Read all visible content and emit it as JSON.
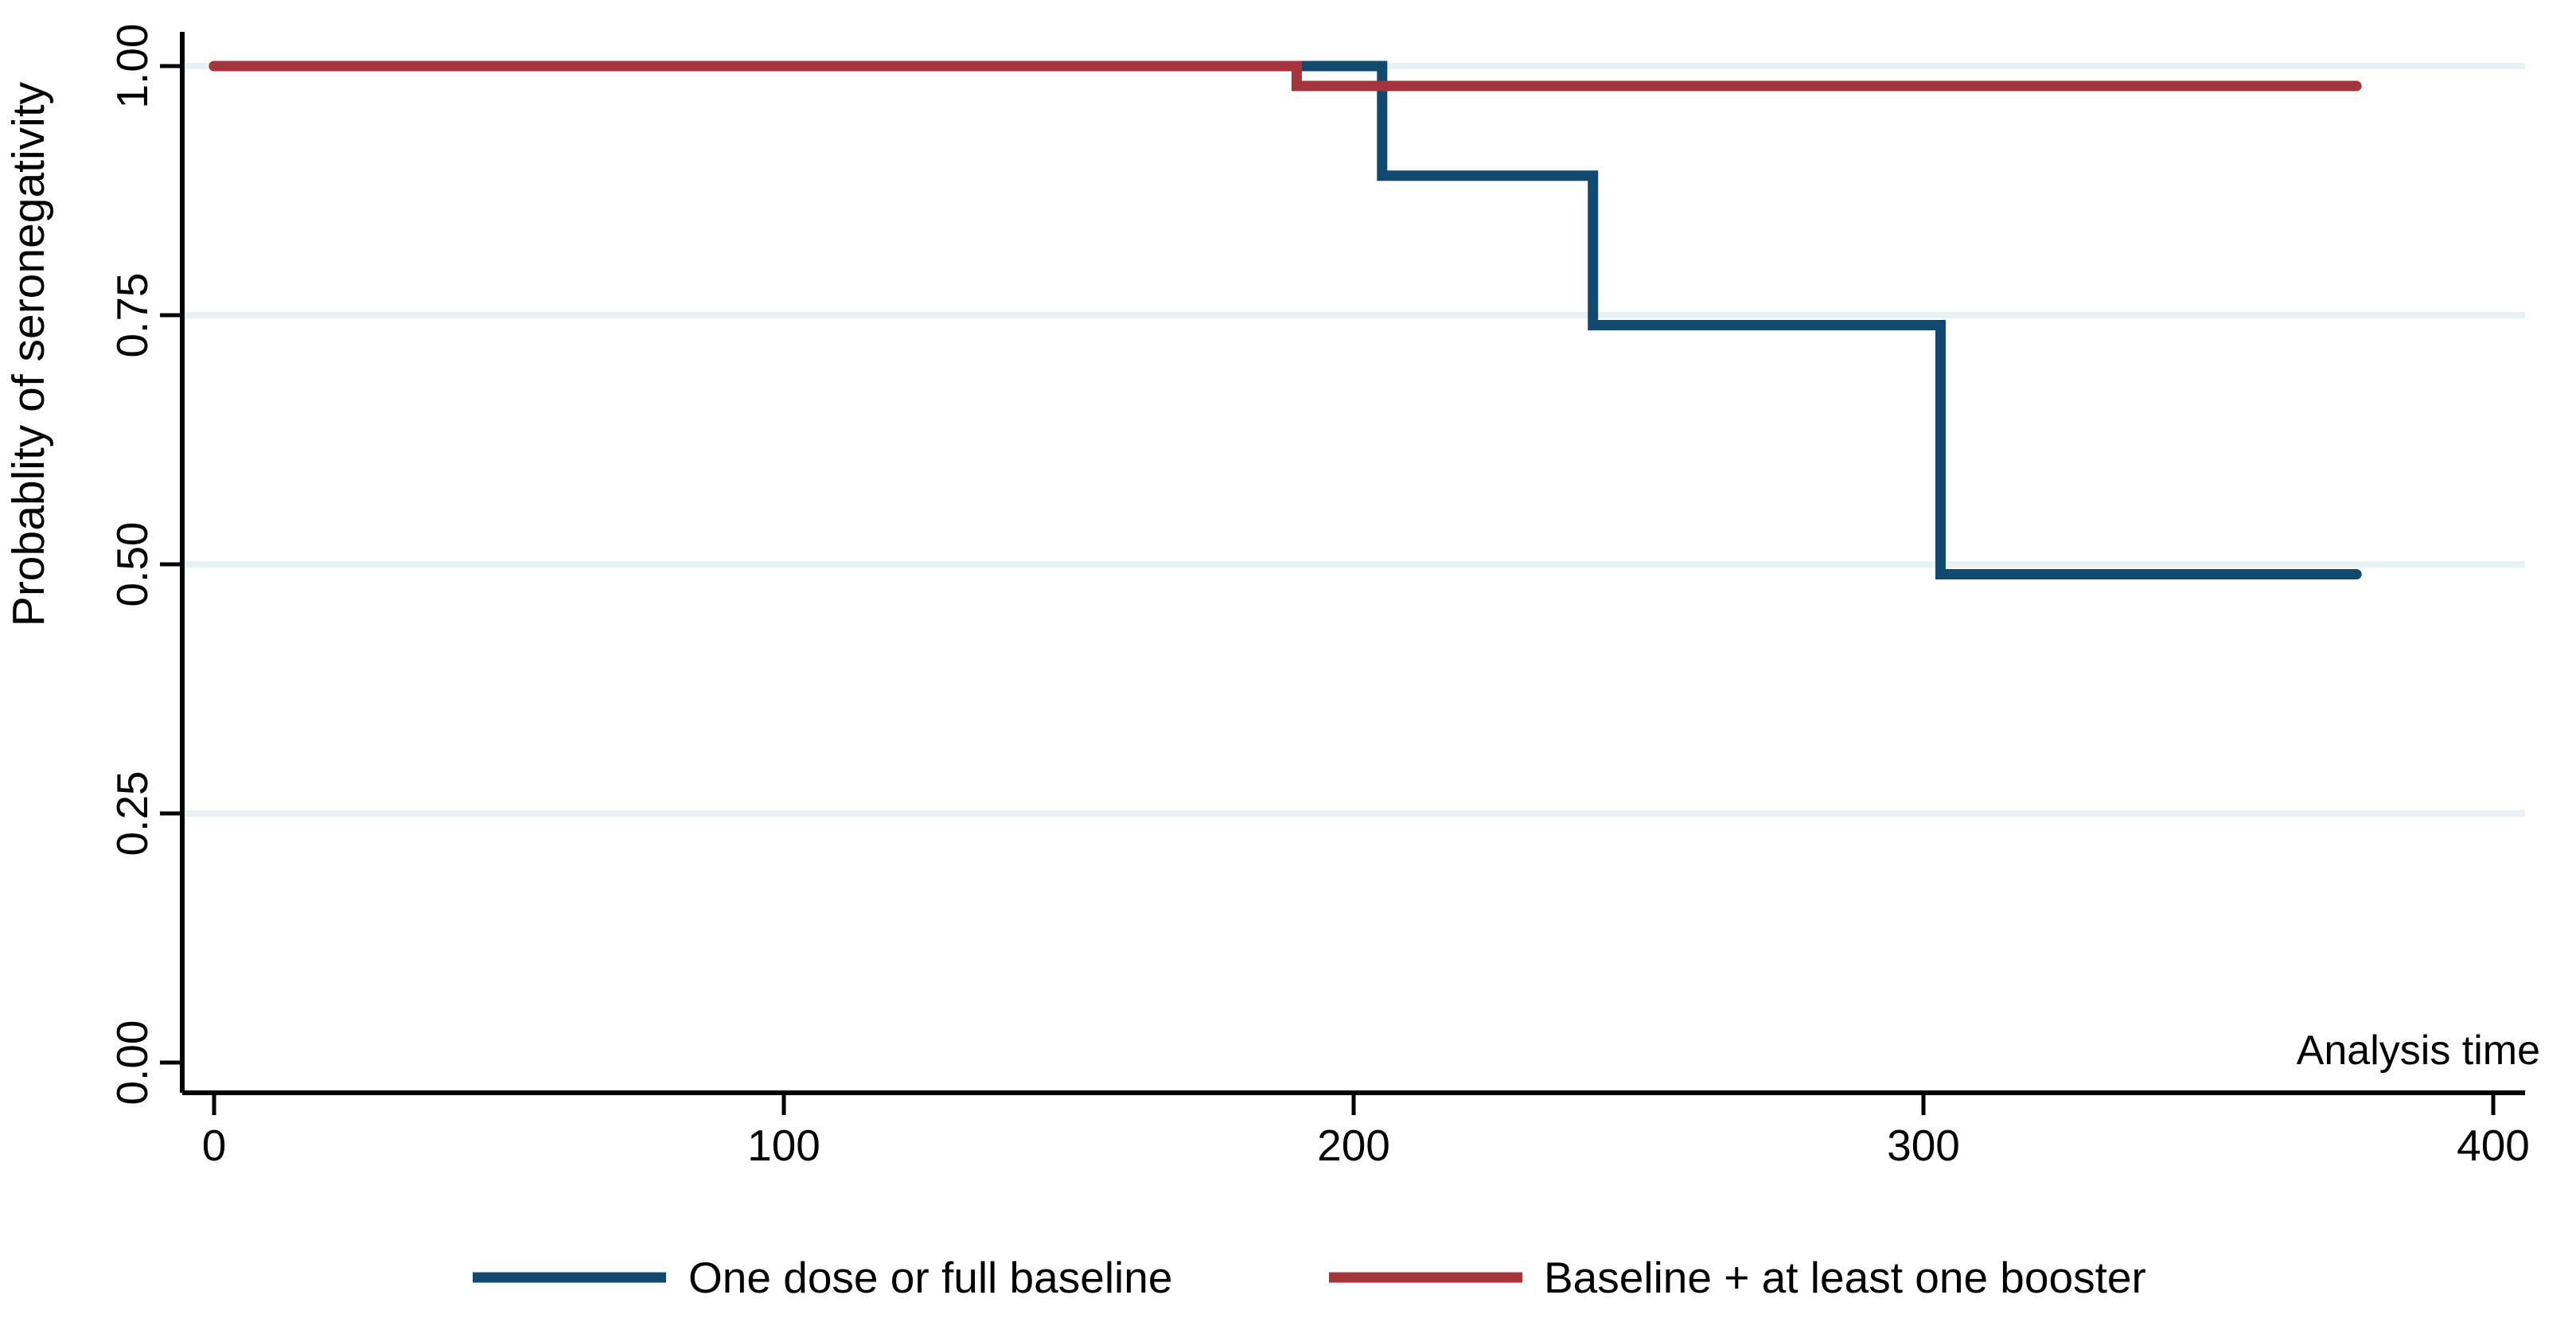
{
  "figure": {
    "background": "#ffffff"
  },
  "chart_data": {
    "type": "line",
    "subtype": "kaplan-meier-step",
    "title": "",
    "xlabel": "Analysis time",
    "ylabel": "Probablity of seronegativity",
    "x_ticks": [
      0,
      100,
      200,
      300,
      400
    ],
    "y_ticks": [
      {
        "value": 0,
        "label": "0.00"
      },
      {
        "value": 0.25,
        "label": "0.25"
      },
      {
        "value": 0.5,
        "label": "0.50"
      },
      {
        "value": 0.75,
        "label": "0.75"
      },
      {
        "value": 1,
        "label": "1.00"
      }
    ],
    "grid_values": [
      0.25,
      0.5,
      0.75,
      1.0
    ],
    "grid_on": true,
    "grid_color": "#e8f1f3",
    "axis_color": "#000000",
    "xlim": [
      0,
      405
    ],
    "ylim": [
      0,
      1.03
    ],
    "legend_position": "bottom-center",
    "series": [
      {
        "name": "One dose or full baseline",
        "color": "#12496f",
        "step_points": [
          [
            0,
            1.0
          ],
          [
            205,
            1.0
          ],
          [
            205,
            0.89
          ],
          [
            242,
            0.89
          ],
          [
            242,
            0.74
          ],
          [
            303,
            0.74
          ],
          [
            303,
            0.49
          ],
          [
            376,
            0.49
          ]
        ]
      },
      {
        "name": "Baseline + at least one booster",
        "color": "#a5343d",
        "step_points": [
          [
            0,
            1.0
          ],
          [
            190,
            1.0
          ],
          [
            190,
            0.98
          ],
          [
            376,
            0.98
          ]
        ]
      }
    ]
  }
}
